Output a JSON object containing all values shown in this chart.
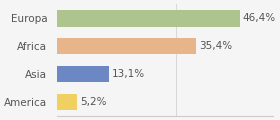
{
  "categories": [
    "America",
    "Asia",
    "Africa",
    "Europa"
  ],
  "values": [
    5.2,
    13.1,
    35.4,
    46.4
  ],
  "labels": [
    "5,2%",
    "13,1%",
    "35,4%",
    "46,4%"
  ],
  "bar_colors": [
    "#f0d060",
    "#6b88c4",
    "#e8b48a",
    "#aec48f"
  ],
  "background_color": "#f5f5f5",
  "xlim": [
    0,
    55
  ],
  "label_fontsize": 7.5,
  "tick_fontsize": 7.5
}
